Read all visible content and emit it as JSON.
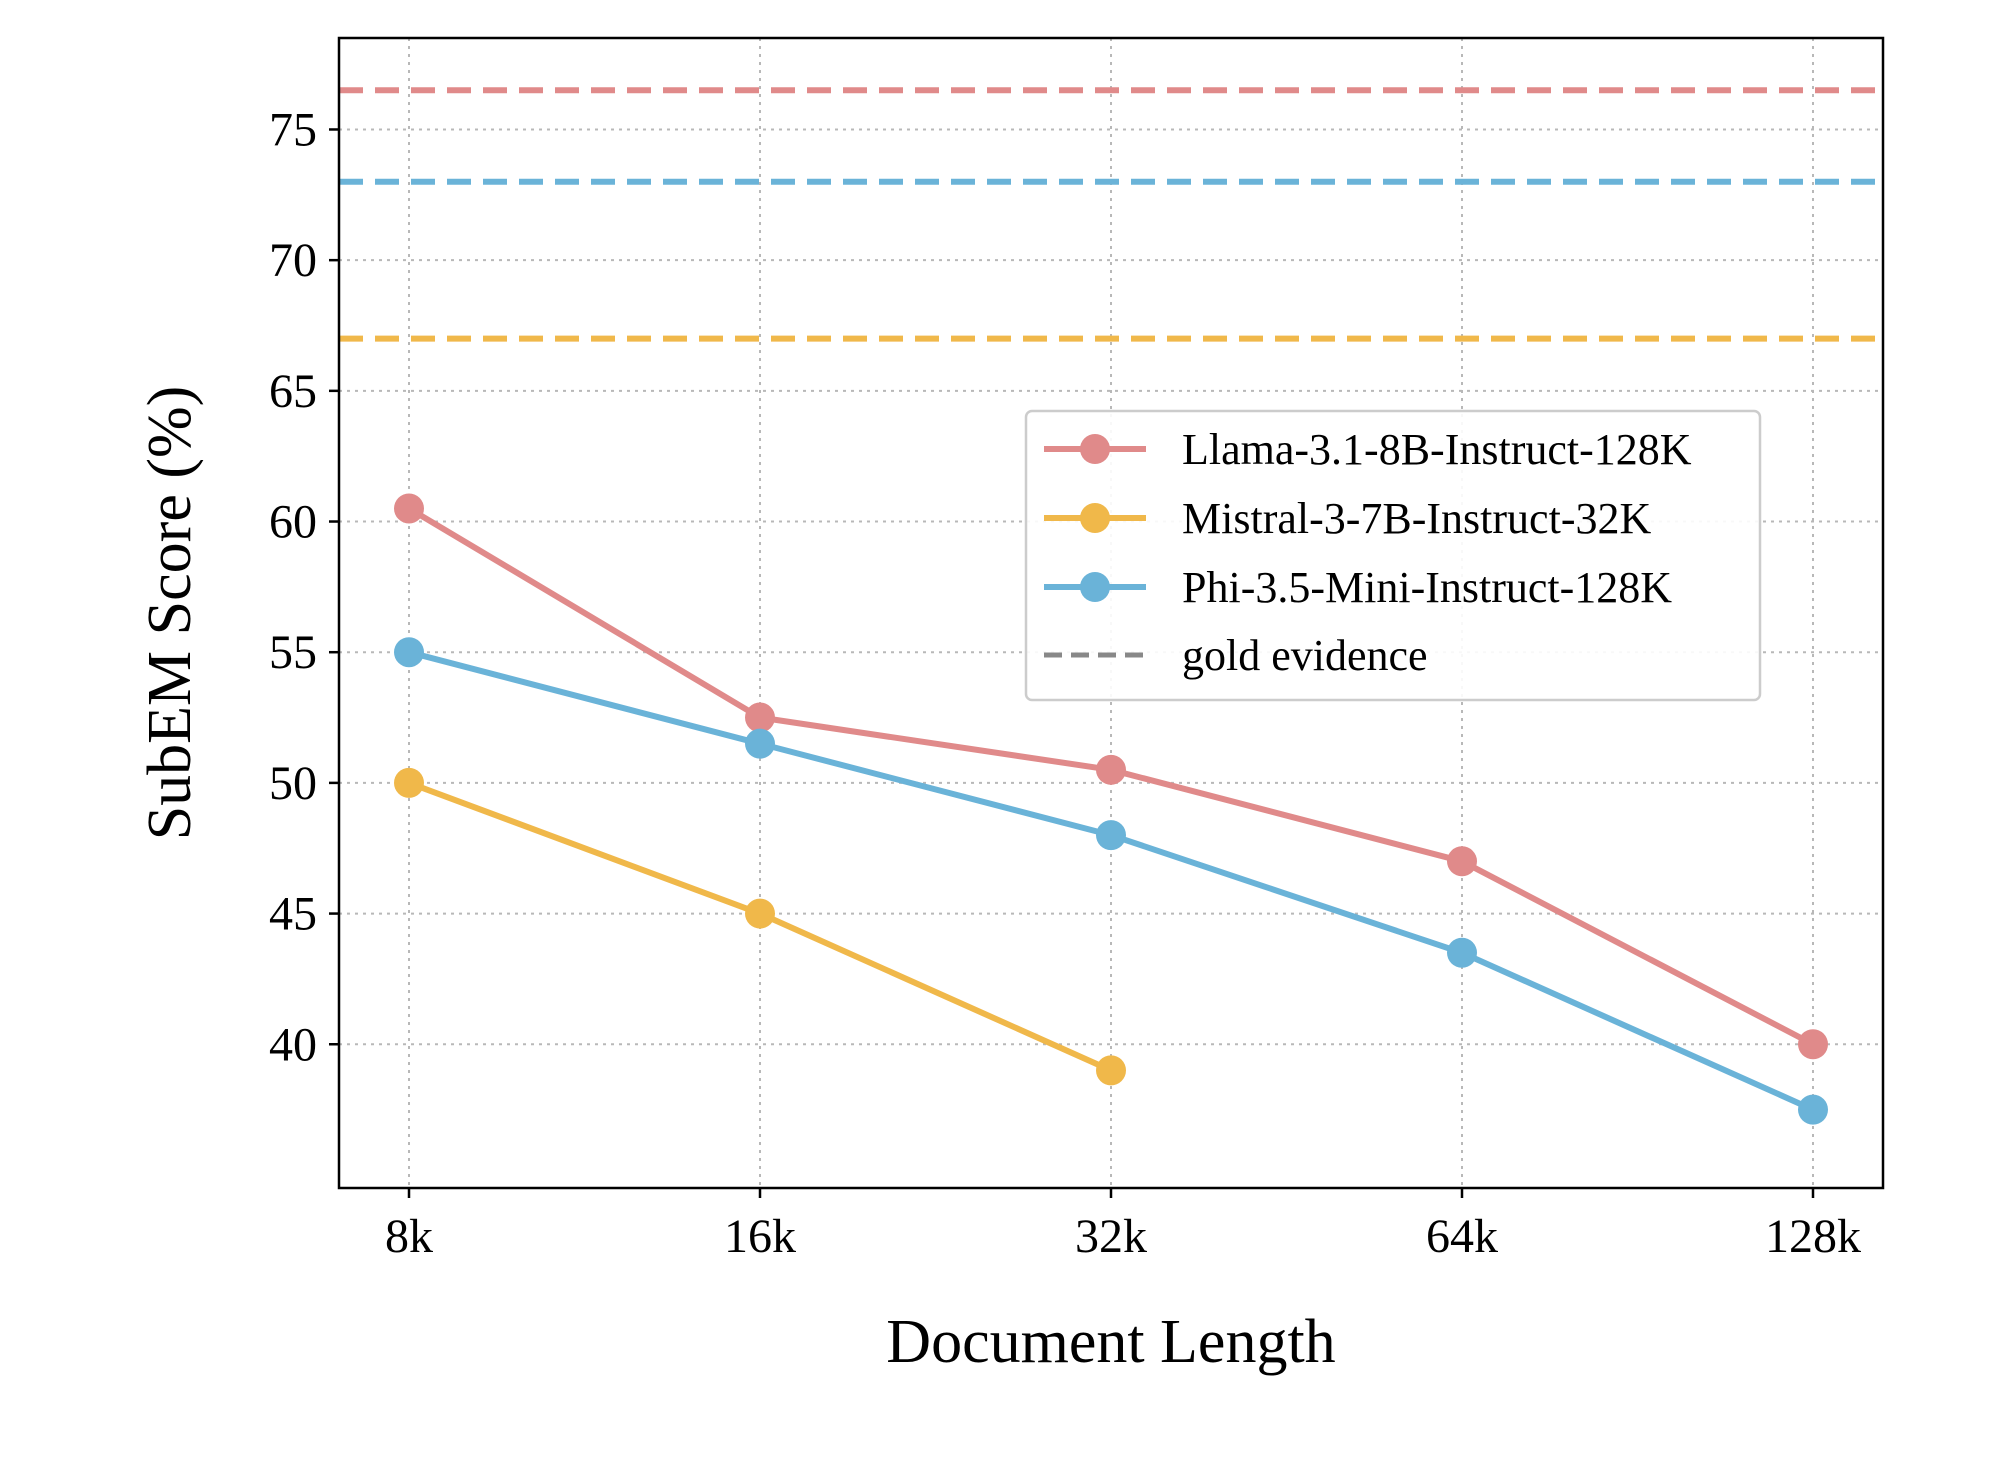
{
  "chart_data": {
    "type": "line",
    "title": "",
    "xlabel": "Document Length",
    "ylabel": "SubEM Score (%)",
    "categories": [
      "8k",
      "16k",
      "32k",
      "64k",
      "128k"
    ],
    "ylim": [
      34.5,
      78.5
    ],
    "yticks": [
      40,
      45,
      50,
      55,
      60,
      65,
      70,
      75
    ],
    "grid": true,
    "legend_position": "center-right",
    "series": [
      {
        "name": "Llama-3.1-8B-Instruct-128K",
        "color": "#e08a8a",
        "values": [
          60.5,
          52.5,
          50.5,
          47.0,
          40.0
        ]
      },
      {
        "name": "Mistral-3-7B-Instruct-32K",
        "color": "#f0b84a",
        "values": [
          50.0,
          45.0,
          39.0,
          null,
          null
        ]
      },
      {
        "name": "Phi-3.5-Mini-Instruct-128K",
        "color": "#6ab3d8",
        "values": [
          55.0,
          51.5,
          48.0,
          43.5,
          37.5
        ]
      }
    ],
    "reference_lines": {
      "name": "gold evidence",
      "style": "dashed",
      "legend_color": "#888888",
      "lines": [
        {
          "series": "Llama-3.1-8B-Instruct-128K",
          "value": 76.5,
          "color": "#e08a8a"
        },
        {
          "series": "Phi-3.5-Mini-Instruct-128K",
          "value": 73.0,
          "color": "#6ab3d8"
        },
        {
          "series": "Mistral-3-7B-Instruct-32K",
          "value": 67.0,
          "color": "#f0b84a"
        }
      ]
    }
  }
}
